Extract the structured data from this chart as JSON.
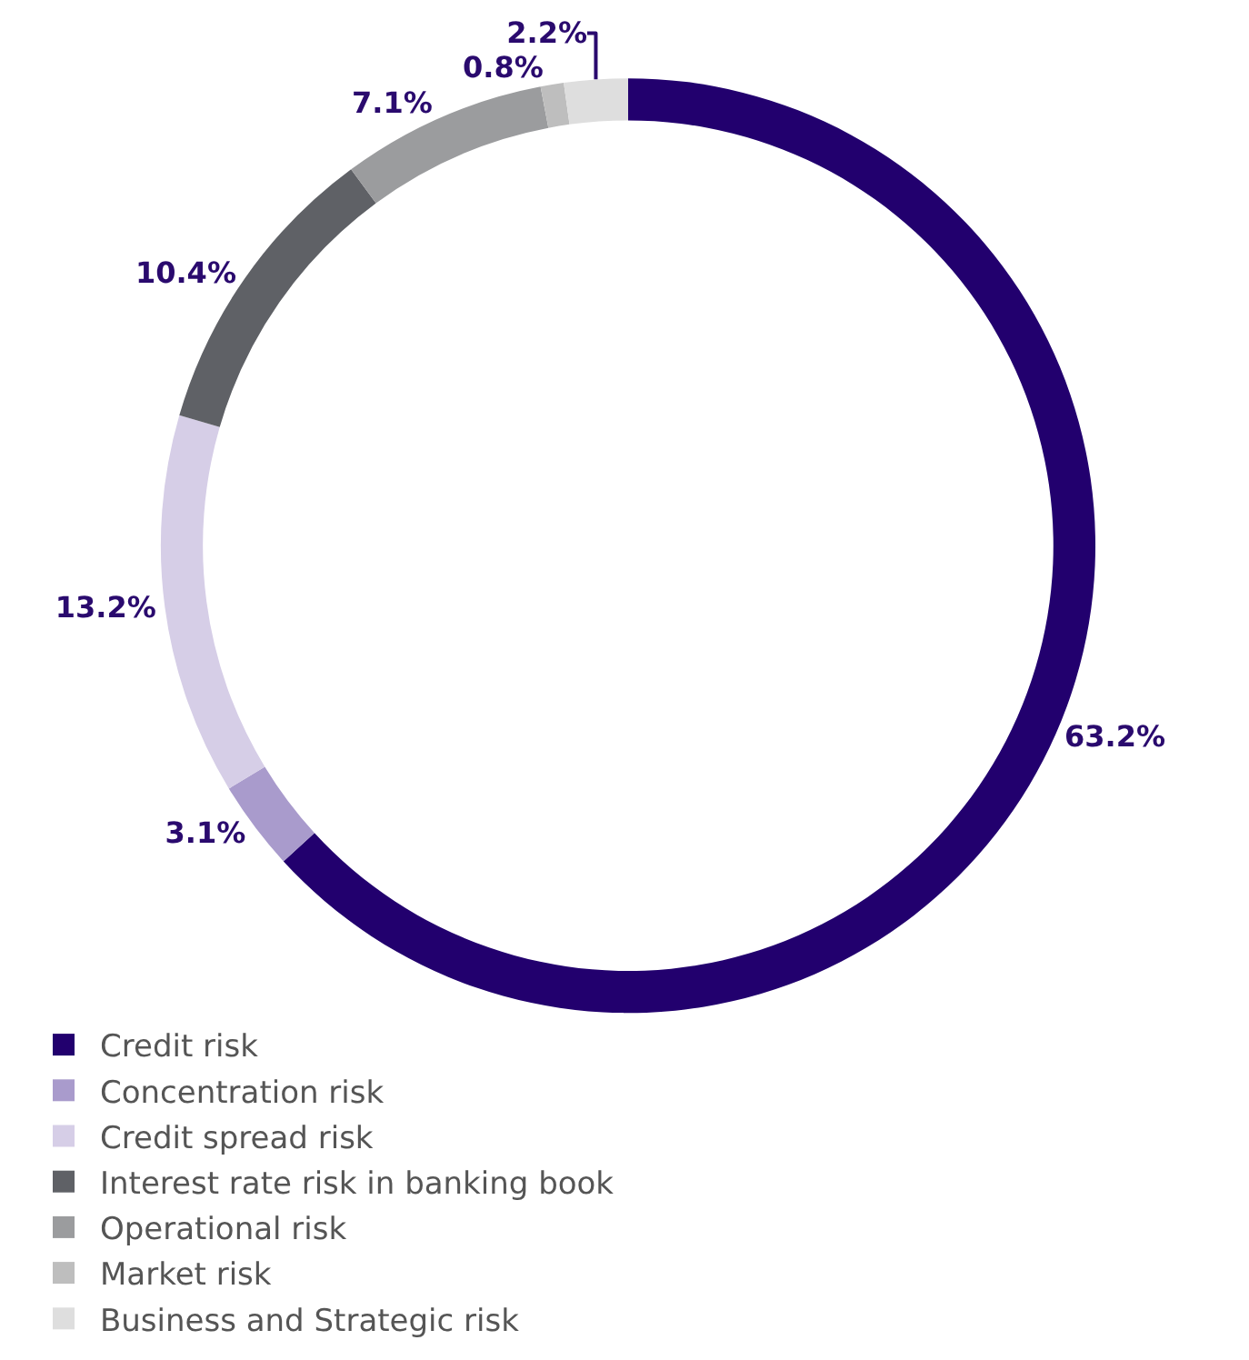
{
  "chart_data": {
    "type": "donut",
    "categories": [
      "Credit risk",
      "Concentration risk",
      "Credit spread risk",
      "Interest rate risk in banking book",
      "Operational risk",
      "Market risk",
      "Business and Strategic risk"
    ],
    "values": [
      63.2,
      3.1,
      13.2,
      10.4,
      7.1,
      0.8,
      2.2
    ],
    "colors": [
      "#22006e",
      "#a99bcc",
      "#d6cee7",
      "#5f6166",
      "#9b9c9e",
      "#bebebe",
      "#dedede"
    ],
    "value_labels": [
      "63.2%",
      "3.1%",
      "13.2%",
      "10.4%",
      "7.1%",
      "0.8%",
      "2.2%"
    ],
    "legend": "bottom left"
  }
}
